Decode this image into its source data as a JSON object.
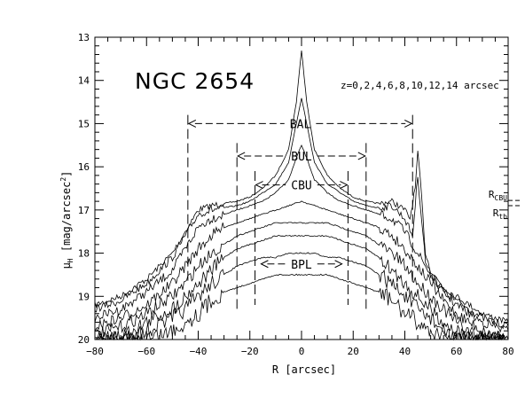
{
  "chart_data": {
    "type": "line",
    "title": "NGC 2654",
    "annotation": "z=0,2,4,6,8,10,12,14 arcsec",
    "xlabel": "R [arcsec]",
    "ylabel_main": "μ",
    "ylabel_sub": "H",
    "ylabel_unit": "[mag/arcsec",
    "ylabel_sup": "2",
    "ylabel_close": "]",
    "xlim": [
      -80,
      80
    ],
    "ylim": [
      20,
      13
    ],
    "y_inverted": true,
    "grid": false,
    "x_ticks": [
      -80,
      -60,
      -40,
      -20,
      0,
      20,
      40,
      60,
      80
    ],
    "y_ticks": [
      13,
      14,
      15,
      16,
      17,
      18,
      19,
      20
    ],
    "series": [
      {
        "x": [
          -80,
          -70,
          -60,
          -50,
          -45,
          -40,
          -35,
          -30,
          -25,
          -20,
          -15,
          -10,
          -5,
          -2,
          0,
          2,
          5,
          10,
          15,
          20,
          25,
          30,
          35,
          40,
          42,
          44,
          45,
          46,
          48,
          50,
          55,
          60,
          65,
          70,
          75,
          80
        ],
        "y": [
          19.2,
          19.0,
          18.6,
          18.0,
          17.5,
          17.0,
          16.9,
          16.85,
          16.8,
          16.7,
          16.5,
          16.2,
          15.6,
          14.5,
          13.3,
          14.5,
          15.6,
          16.2,
          16.5,
          16.7,
          16.8,
          16.85,
          16.8,
          17.0,
          17.2,
          16.5,
          15.7,
          16.3,
          18.0,
          18.4,
          18.8,
          19.0,
          19.2,
          19.4,
          19.5,
          19.6
        ]
      },
      {
        "x": [
          -80,
          -70,
          -60,
          -50,
          -45,
          -40,
          -35,
          -30,
          -25,
          -20,
          -15,
          -10,
          -5,
          -2,
          0,
          2,
          5,
          10,
          15,
          20,
          25,
          30,
          35,
          40,
          43,
          45,
          48,
          50,
          55,
          60,
          65,
          70,
          75,
          80
        ],
        "y": [
          19.3,
          19.1,
          18.7,
          18.1,
          17.6,
          17.1,
          17.0,
          16.95,
          16.9,
          16.8,
          16.6,
          16.4,
          15.9,
          15.0,
          14.4,
          15.0,
          15.9,
          16.4,
          16.6,
          16.8,
          16.9,
          16.95,
          16.9,
          17.2,
          17.6,
          16.2,
          18.2,
          18.5,
          18.9,
          19.1,
          19.3,
          19.5,
          19.6,
          19.7
        ]
      },
      {
        "x": [
          -80,
          -70,
          -60,
          -50,
          -45,
          -40,
          -35,
          -30,
          -25,
          -20,
          -15,
          -10,
          -5,
          -2,
          0,
          2,
          5,
          10,
          15,
          20,
          25,
          30,
          35,
          40,
          45,
          50,
          55,
          60,
          65,
          70,
          75,
          80
        ],
        "y": [
          19.5,
          19.3,
          18.9,
          18.4,
          17.9,
          17.4,
          17.2,
          17.1,
          17.0,
          16.9,
          16.8,
          16.6,
          16.3,
          15.8,
          15.5,
          15.8,
          16.3,
          16.6,
          16.8,
          16.9,
          17.0,
          17.1,
          17.2,
          17.5,
          18.0,
          18.5,
          18.9,
          19.2,
          19.4,
          19.6,
          19.7,
          19.8
        ]
      },
      {
        "x": [
          -80,
          -70,
          -60,
          -50,
          -45,
          -40,
          -35,
          -30,
          -25,
          -20,
          -15,
          -10,
          -5,
          0,
          5,
          10,
          15,
          20,
          25,
          30,
          35,
          40,
          45,
          50,
          55,
          60,
          65,
          70,
          75,
          80
        ],
        "y": [
          19.7,
          19.5,
          19.2,
          18.7,
          18.3,
          17.9,
          17.6,
          17.4,
          17.3,
          17.2,
          17.1,
          17.0,
          16.9,
          16.8,
          16.9,
          17.0,
          17.1,
          17.2,
          17.3,
          17.4,
          17.6,
          17.9,
          18.3,
          18.7,
          19.1,
          19.4,
          19.6,
          19.8,
          19.9,
          20.0
        ]
      },
      {
        "x": [
          -80,
          -70,
          -60,
          -50,
          -45,
          -40,
          -35,
          -30,
          -25,
          -20,
          -15,
          -10,
          -5,
          0,
          5,
          10,
          15,
          20,
          25,
          30,
          35,
          40,
          45,
          50,
          55,
          60,
          65,
          70,
          75,
          80
        ],
        "y": [
          19.9,
          19.7,
          19.4,
          19.0,
          18.7,
          18.3,
          18.0,
          17.8,
          17.6,
          17.5,
          17.4,
          17.3,
          17.3,
          17.3,
          17.3,
          17.3,
          17.4,
          17.5,
          17.6,
          17.8,
          18.0,
          18.3,
          18.7,
          19.0,
          19.3,
          19.6,
          19.8,
          20.0,
          20.0,
          20.0
        ]
      },
      {
        "x": [
          -80,
          -70,
          -60,
          -50,
          -45,
          -40,
          -35,
          -30,
          -25,
          -20,
          -15,
          -10,
          -5,
          0,
          5,
          10,
          15,
          20,
          25,
          30,
          35,
          40,
          45,
          50,
          55,
          60,
          65,
          70,
          75,
          80
        ],
        "y": [
          20.0,
          19.9,
          19.6,
          19.3,
          19.0,
          18.7,
          18.4,
          18.1,
          17.9,
          17.8,
          17.7,
          17.6,
          17.6,
          17.6,
          17.6,
          17.6,
          17.7,
          17.8,
          17.9,
          18.1,
          18.4,
          18.7,
          19.0,
          19.3,
          19.6,
          19.8,
          20.0,
          20.0,
          20.0,
          20.0
        ]
      },
      {
        "x": [
          -80,
          -70,
          -60,
          -50,
          -45,
          -40,
          -35,
          -30,
          -25,
          -20,
          -15,
          -10,
          -5,
          0,
          5,
          10,
          15,
          20,
          25,
          30,
          35,
          40,
          45,
          50,
          55,
          60,
          65,
          70,
          75,
          80
        ],
        "y": [
          20.0,
          20.0,
          19.8,
          19.5,
          19.3,
          19.0,
          18.7,
          18.5,
          18.3,
          18.2,
          18.1,
          18.1,
          18.0,
          18.0,
          18.0,
          18.1,
          18.1,
          18.2,
          18.3,
          18.5,
          18.7,
          19.0,
          19.3,
          19.5,
          19.8,
          20.0,
          20.0,
          20.0,
          20.0,
          20.0
        ]
      },
      {
        "x": [
          -80,
          -70,
          -60,
          -50,
          -45,
          -40,
          -35,
          -30,
          -25,
          -20,
          -15,
          -10,
          -5,
          0,
          5,
          10,
          15,
          20,
          25,
          30,
          35,
          40,
          45,
          50,
          55,
          60,
          65,
          70,
          75,
          80
        ],
        "y": [
          20.0,
          20.0,
          20.0,
          19.8,
          19.6,
          19.4,
          19.1,
          18.9,
          18.8,
          18.7,
          18.6,
          18.5,
          18.5,
          18.5,
          18.5,
          18.5,
          18.6,
          18.7,
          18.8,
          18.9,
          19.1,
          19.4,
          19.6,
          19.8,
          20.0,
          20.0,
          20.0,
          20.0,
          20.0,
          20.0
        ]
      }
    ],
    "regions": [
      {
        "label": "BAL",
        "x1": -44,
        "x2": 43,
        "y": 15.0,
        "top": 14.8,
        "bottom": 18.7
      },
      {
        "label": "BUL",
        "x1": -25,
        "x2": 25,
        "y": 15.75,
        "top": 15.45,
        "bottom": 19.35
      },
      {
        "label": "CBU",
        "x1": -18,
        "x2": 18,
        "y": 16.42,
        "top": 16.1,
        "bottom": 19.2
      },
      {
        "label": "BPL",
        "x1": -16,
        "x2": 16,
        "y": 18.25
      }
    ],
    "right_markers": [
      {
        "label_main": "R",
        "label_sub": "CBU",
        "y": 16.78
      },
      {
        "label_main": "R",
        "label_sub": "tb",
        "y": 16.9
      }
    ]
  }
}
